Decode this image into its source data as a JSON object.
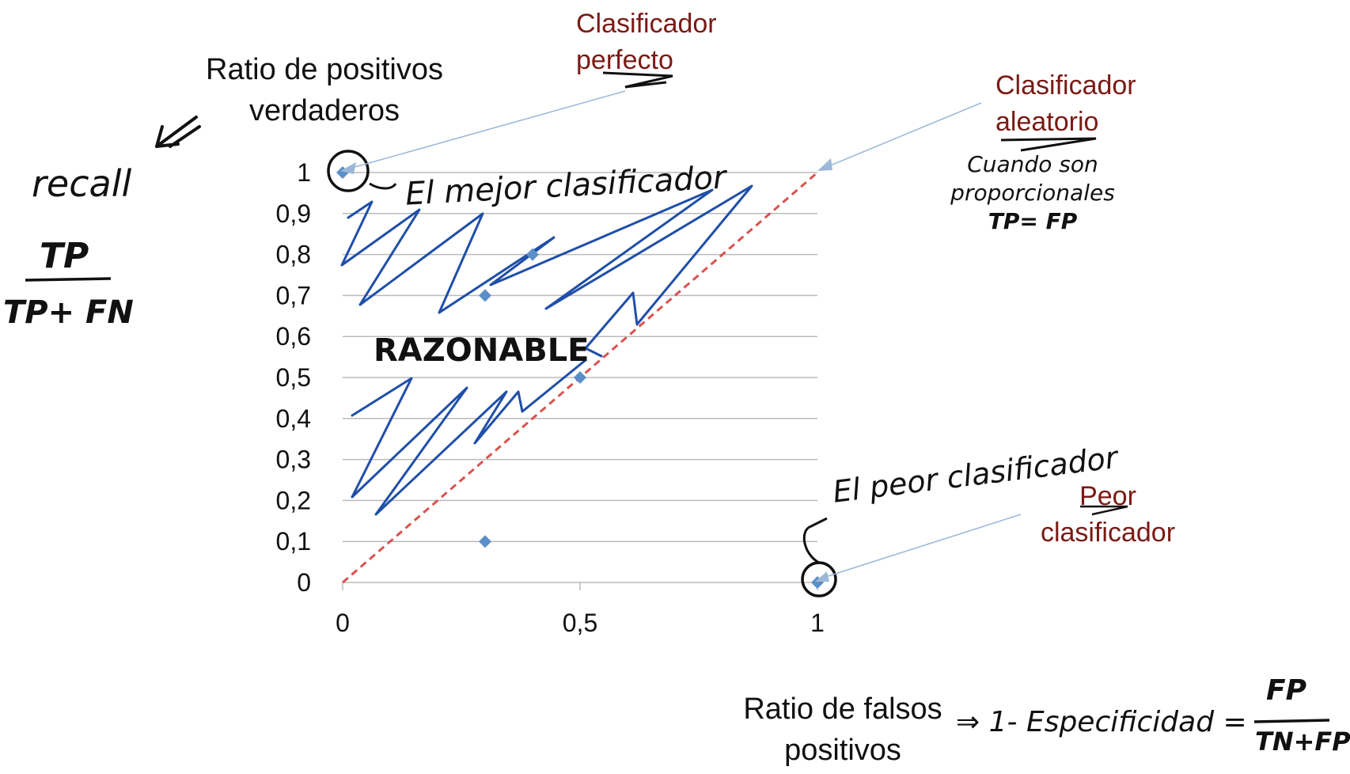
{
  "chart_data": {
    "type": "scatter",
    "xlabel": "Ratio de falsos positivos",
    "ylabel": "Ratio de positivos verdaderos",
    "xlim": [
      0,
      1
    ],
    "ylim": [
      0,
      1
    ],
    "x_ticks": [
      "0",
      "0,5",
      "1"
    ],
    "y_ticks": [
      "0",
      "0,1",
      "0,2",
      "0,3",
      "0,4",
      "0,5",
      "0,6",
      "0,7",
      "0,8",
      "0,9",
      "1"
    ],
    "grid": "horizontal",
    "points": [
      {
        "x": 0,
        "y": 1
      },
      {
        "x": 0.3,
        "y": 0.7
      },
      {
        "x": 0.4,
        "y": 0.8
      },
      {
        "x": 0.5,
        "y": 0.5
      },
      {
        "x": 0.3,
        "y": 0.1
      },
      {
        "x": 1,
        "y": 0
      }
    ],
    "diagonal": {
      "from": [
        0,
        0
      ],
      "to": [
        1,
        1
      ],
      "color": "#d9534f"
    },
    "point_color": "#5b8fc9"
  },
  "annotations": {
    "perfect": "Clasificador perfecto",
    "perfect_line1": "Clasificador",
    "perfect_line2": "perfecto",
    "random_line1": "Clasificador",
    "random_line2": "aleatorio",
    "worst_line1": "Peor",
    "worst_line2": "clasificador"
  },
  "labels": {
    "ylabel_line1": "Ratio de  positivos",
    "ylabel_line2": "verdaderos",
    "xlabel_line1": "Ratio de falsos",
    "xlabel_line2": "positivos"
  },
  "handwriting": {
    "recall": "recall",
    "tp": "TP",
    "tp_fn": "TP+ FN",
    "best": "El mejor clasificador",
    "reasonable": "RAZONABLE",
    "worst": "El peor clasificador",
    "when_line1": "Cuando son",
    "when_line2": "proporcionales",
    "when_line3": "TP= FP",
    "specificity": "⇒ 1- Especificidad =",
    "fp": "FP",
    "tn_fp": "TN+FP"
  },
  "colors": {
    "annotation_red": "#7a1a14",
    "scribble_blue": "#1f4fa8",
    "grid": "#bbbbbb"
  }
}
